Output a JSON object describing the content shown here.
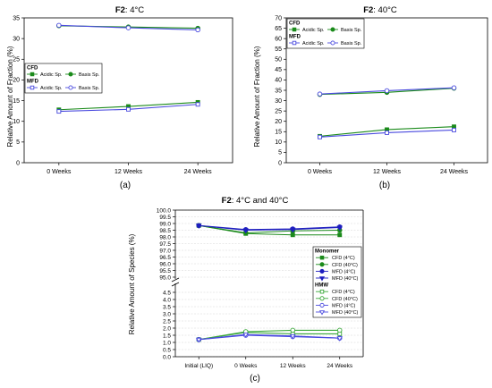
{
  "figure": {
    "panels": [
      "(a)",
      "(b)",
      "(c)"
    ]
  },
  "chart_data": [
    {
      "type": "line",
      "panel_label": "(a)",
      "title_bold": "F2",
      "title_rest": ": 4°C",
      "title": "F2: 4°C",
      "xlabel": "",
      "ylabel": "Relative Amount of Fraction (%)",
      "categories": [
        "0 Weeks",
        "12 Weeks",
        "24 Weeks"
      ],
      "ylim": [
        0,
        35
      ],
      "yticks": [
        0,
        5,
        10,
        15,
        20,
        25,
        30,
        35
      ],
      "ytick_labels": [
        "0",
        "5",
        "10",
        "15",
        "20",
        "25",
        "30",
        "35"
      ],
      "legend": {
        "placement": "middle-left",
        "groups": [
          {
            "title": "CFD",
            "entries": [
              {
                "label": "Acidic Sp.",
                "color": "#1a8a1a",
                "marker": "square",
                "filled": true
              },
              {
                "label": "Basis Sp.",
                "color": "#1a8a1a",
                "marker": "circle",
                "filled": true
              }
            ]
          },
          {
            "title": "MFD",
            "entries": [
              {
                "label": "Acidic Sp.",
                "color": "#4a4adf",
                "marker": "square",
                "filled": false
              },
              {
                "label": "Basis Sp.",
                "color": "#4a4adf",
                "marker": "circle",
                "filled": false
              }
            ]
          }
        ]
      },
      "series": [
        {
          "group": "CFD",
          "color": "#1a8a1a",
          "marker": "square",
          "filled": true,
          "values": [
            12.8,
            13.6,
            14.6
          ]
        },
        {
          "group": "CFD",
          "color": "#1a8a1a",
          "marker": "circle",
          "filled": true,
          "values": [
            33.1,
            32.8,
            32.5
          ]
        },
        {
          "group": "MFD",
          "color": "#4a4adf",
          "marker": "square",
          "filled": false,
          "values": [
            12.4,
            12.9,
            14.1
          ]
        },
        {
          "group": "MFD",
          "color": "#4a4adf",
          "marker": "circle",
          "filled": false,
          "values": [
            33.2,
            32.6,
            32.1
          ]
        }
      ]
    },
    {
      "type": "line",
      "panel_label": "(b)",
      "title_bold": "F2",
      "title_rest": ": 40°C",
      "title": "F2: 40°C",
      "xlabel": "",
      "ylabel": "Relative Amount of Fraction (%)",
      "categories": [
        "0 Weeks",
        "12 Weeks",
        "24 Weeks"
      ],
      "ylim": [
        0,
        70
      ],
      "yticks": [
        0,
        5,
        10,
        15,
        20,
        25,
        30,
        35,
        40,
        45,
        50,
        55,
        60,
        65,
        70
      ],
      "ytick_labels": [
        "0",
        "5",
        "10",
        "15",
        "20",
        "25",
        "30",
        "35",
        "40",
        "45",
        "50",
        "55",
        "60",
        "65",
        "70"
      ],
      "legend": {
        "placement": "top-left",
        "groups": [
          {
            "title": "CFD",
            "entries": [
              {
                "label": "Acidic Sp.",
                "color": "#1a8a1a",
                "marker": "square",
                "filled": true
              },
              {
                "label": "Basis Sp.",
                "color": "#1a8a1a",
                "marker": "circle",
                "filled": true
              }
            ]
          },
          {
            "title": "MFD",
            "entries": [
              {
                "label": "Acidic Sp.",
                "color": "#4a4adf",
                "marker": "square",
                "filled": false
              },
              {
                "label": "Basis Sp.",
                "color": "#4a4adf",
                "marker": "circle",
                "filled": false
              }
            ]
          }
        ]
      },
      "series": [
        {
          "group": "CFD",
          "color": "#1a8a1a",
          "marker": "square",
          "filled": true,
          "values": [
            12.8,
            16.0,
            17.4
          ]
        },
        {
          "group": "CFD",
          "color": "#1a8a1a",
          "marker": "circle",
          "filled": true,
          "values": [
            33.0,
            34.0,
            36.0
          ]
        },
        {
          "group": "MFD",
          "color": "#4a4adf",
          "marker": "square",
          "filled": false,
          "values": [
            12.4,
            14.5,
            15.8
          ]
        },
        {
          "group": "MFD",
          "color": "#4a4adf",
          "marker": "circle",
          "filled": false,
          "values": [
            33.2,
            34.8,
            36.2
          ]
        }
      ]
    },
    {
      "type": "line",
      "panel_label": "(c)",
      "title_bold": "F2",
      "title_rest": ": 4°C and 40°C",
      "title": "F2: 4°C and 40°C",
      "xlabel": "",
      "ylabel": "Relative Amount of Species (%)",
      "categories": [
        "Initial (LIQ)",
        "0 Weeks",
        "12 Weeks",
        "24 Weeks"
      ],
      "axis_break": true,
      "ylim_upper": [
        95.0,
        100.0
      ],
      "ylim_lower": [
        0.0,
        5.0
      ],
      "yticks_upper": [
        95.0,
        95.5,
        96.0,
        96.5,
        97.0,
        97.5,
        98.0,
        98.5,
        99.0,
        99.5,
        100.0
      ],
      "ytick_labels_upper": [
        "95.0",
        "95.5",
        "96.0",
        "96.5",
        "97.0",
        "97.5",
        "98.0",
        "98.5",
        "99.0",
        "99.5",
        "100.0"
      ],
      "yticks_lower": [
        0.0,
        0.5,
        1.0,
        1.5,
        2.0,
        2.5,
        3.0,
        3.5,
        4.0,
        4.5
      ],
      "ytick_labels_lower": [
        "0.0",
        "0.5",
        "1.0",
        "1.5",
        "2.0",
        "2.5",
        "3.0",
        "3.5",
        "4.0",
        "4.5"
      ],
      "legend": {
        "placement": "right",
        "groups": [
          {
            "title": "Monomer",
            "entries": [
              {
                "label": "CFD (4°C)",
                "color": "#1a8a1a",
                "marker": "square",
                "filled": true
              },
              {
                "label": "CFD (40°C)",
                "color": "#1a8a1a",
                "marker": "circle",
                "filled": true
              },
              {
                "label": "MFD (4°C)",
                "color": "#1f1fbf",
                "marker": "circle",
                "filled": true
              },
              {
                "label": "MFD (40°C)",
                "color": "#1f1fbf",
                "marker": "triangle-down",
                "filled": true
              }
            ]
          },
          {
            "title": "HMW",
            "entries": [
              {
                "label": "CFD (4°C)",
                "color": "#3aa83a",
                "marker": "square",
                "filled": false
              },
              {
                "label": "CFD (40°C)",
                "color": "#3aa83a",
                "marker": "circle",
                "filled": false
              },
              {
                "label": "MFD (4°C)",
                "color": "#4a4adf",
                "marker": "circle",
                "filled": false
              },
              {
                "label": "MFD (40°C)",
                "color": "#4a4adf",
                "marker": "triangle-down",
                "filled": false
              }
            ]
          }
        ]
      },
      "series": [
        {
          "group": "Monomer",
          "axis": "upper",
          "color": "#1a8a1a",
          "marker": "square",
          "filled": true,
          "values": [
            98.85,
            98.25,
            98.15,
            98.15
          ]
        },
        {
          "group": "Monomer",
          "axis": "upper",
          "color": "#1a8a1a",
          "marker": "circle",
          "filled": true,
          "values": [
            98.85,
            98.3,
            98.45,
            98.5
          ]
        },
        {
          "group": "Monomer",
          "axis": "upper",
          "color": "#1f1fbf",
          "marker": "circle",
          "filled": true,
          "values": [
            98.85,
            98.55,
            98.6,
            98.75
          ]
        },
        {
          "group": "Monomer",
          "axis": "upper",
          "color": "#1f1fbf",
          "marker": "triangle-down",
          "filled": true,
          "values": [
            98.85,
            98.5,
            98.55,
            98.7
          ]
        },
        {
          "group": "HMW",
          "axis": "lower",
          "color": "#3aa83a",
          "marker": "square",
          "filled": false,
          "values": [
            1.2,
            1.7,
            1.6,
            1.6
          ]
        },
        {
          "group": "HMW",
          "axis": "lower",
          "color": "#3aa83a",
          "marker": "circle",
          "filled": false,
          "values": [
            1.2,
            1.75,
            1.85,
            1.85
          ]
        },
        {
          "group": "HMW",
          "axis": "lower",
          "color": "#4a4adf",
          "marker": "circle",
          "filled": false,
          "values": [
            1.2,
            1.5,
            1.4,
            1.3
          ]
        },
        {
          "group": "HMW",
          "axis": "lower",
          "color": "#4a4adf",
          "marker": "triangle-down",
          "filled": false,
          "values": [
            1.2,
            1.55,
            1.45,
            1.3
          ]
        }
      ]
    }
  ]
}
